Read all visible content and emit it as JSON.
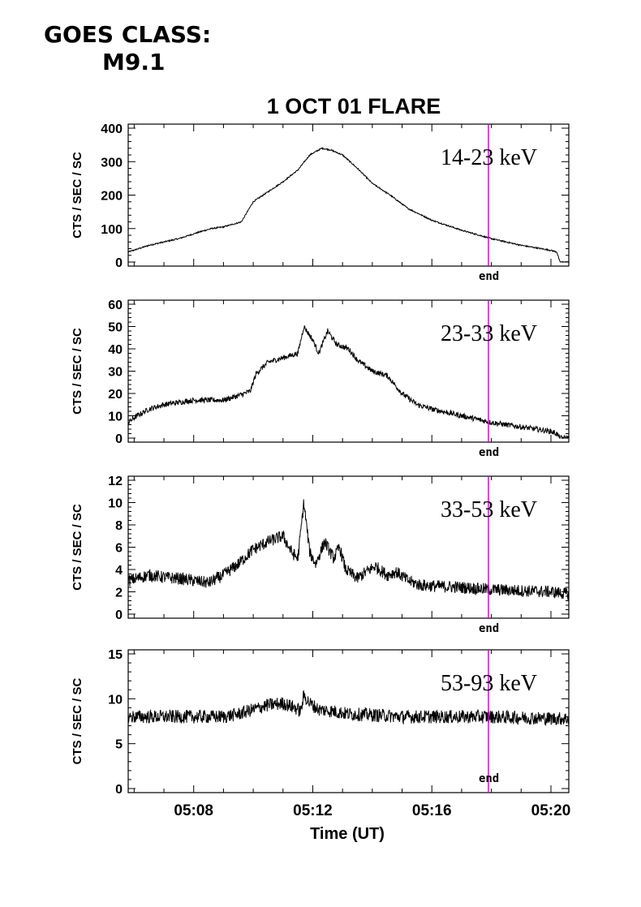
{
  "header": {
    "goes_line1": "GOES CLASS:",
    "goes_line2": "M9.1"
  },
  "chart_data": {
    "type": "line",
    "title": "1 OCT 01 FLARE",
    "xlabel": "Time (UT)",
    "x_ticks": [
      "05:08",
      "05:12",
      "05:16",
      "05:20"
    ],
    "x_range_min": [
      305.8,
      320.6
    ],
    "end_marker": {
      "label": "end",
      "time_min": 317.9,
      "color": "#cc00cc"
    },
    "panels": [
      {
        "band": "14-23 keV",
        "ylabel": "CTS / SEC / SC",
        "ylim": [
          0,
          400
        ],
        "yticks": [
          0,
          100,
          200,
          300,
          400
        ],
        "x": [
          305.8,
          306.5,
          307.5,
          308.2,
          308.6,
          309.0,
          309.6,
          310.0,
          310.5,
          311.0,
          311.5,
          311.9,
          312.3,
          312.6,
          313.0,
          313.5,
          314.0,
          314.6,
          315.2,
          316.0,
          317.0,
          318.0,
          319.0,
          320.0,
          320.2,
          320.3,
          320.6
        ],
        "y": [
          30,
          50,
          70,
          90,
          100,
          105,
          120,
          180,
          210,
          240,
          275,
          320,
          340,
          335,
          320,
          280,
          235,
          200,
          160,
          125,
          95,
          70,
          50,
          35,
          30,
          0,
          0
        ],
        "noise": 2
      },
      {
        "band": "23-33 keV",
        "ylabel": "CTS / SEC / SC",
        "ylim": [
          0,
          60
        ],
        "yticks": [
          0,
          10,
          20,
          30,
          40,
          50,
          60
        ],
        "x": [
          305.8,
          306.1,
          306.5,
          307.0,
          307.5,
          308.0,
          308.5,
          309.0,
          309.5,
          309.9,
          310.1,
          310.5,
          311.0,
          311.5,
          311.7,
          312.0,
          312.2,
          312.5,
          312.8,
          313.2,
          313.5,
          314.0,
          314.5,
          315.0,
          315.5,
          316.0,
          317.0,
          318.0,
          319.0,
          320.0,
          320.2,
          320.3,
          320.6
        ],
        "y": [
          7,
          10,
          13,
          15,
          16,
          17,
          17,
          17,
          19,
          21,
          29,
          34,
          36,
          38,
          50,
          44,
          38,
          48,
          42,
          40,
          35,
          30,
          28,
          20,
          15,
          13,
          10,
          7,
          5,
          3,
          2,
          0,
          0
        ],
        "noise": 1.2
      },
      {
        "band": "33-53 keV",
        "ylabel": "CTS / SEC / SC",
        "ylim": [
          0,
          12
        ],
        "yticks": [
          0,
          2,
          4,
          6,
          8,
          10,
          12
        ],
        "x": [
          305.8,
          306.5,
          307.0,
          307.5,
          308.0,
          308.5,
          309.0,
          309.5,
          310.0,
          310.5,
          311.0,
          311.3,
          311.5,
          311.7,
          311.9,
          312.1,
          312.4,
          312.7,
          312.9,
          313.1,
          313.5,
          313.8,
          314.1,
          314.5,
          314.8,
          315.2,
          315.6,
          316.2,
          317.0,
          318.0,
          319.0,
          320.0,
          320.6
        ],
        "y": [
          3,
          3.5,
          3.3,
          3.2,
          3.0,
          2.8,
          3.5,
          4.5,
          5.8,
          6.5,
          7.0,
          5.5,
          5.0,
          10.0,
          5.5,
          4.5,
          6.5,
          5.0,
          6.0,
          4.0,
          3.2,
          3.8,
          4.3,
          3.5,
          3.8,
          3.0,
          2.6,
          2.5,
          2.4,
          2.2,
          2.1,
          2.0,
          1.8
        ],
        "noise": 0.55
      },
      {
        "band": "53-93 keV",
        "ylabel": "CTS / SEC / SC",
        "ylim": [
          0,
          15
        ],
        "yticks": [
          0,
          5,
          10,
          15
        ],
        "x": [
          305.8,
          307.0,
          308.0,
          309.0,
          309.5,
          310.0,
          310.5,
          311.0,
          311.4,
          311.6,
          311.7,
          311.9,
          312.2,
          312.7,
          313.2,
          314.0,
          315.0,
          316.0,
          317.0,
          318.0,
          319.0,
          320.0,
          320.6
        ],
        "y": [
          8,
          8,
          8,
          8,
          8.3,
          8.8,
          9.3,
          9.5,
          9.0,
          8.6,
          10.4,
          9.5,
          8.8,
          8.6,
          8.3,
          8.2,
          8.0,
          8.0,
          8.0,
          8.0,
          7.9,
          7.8,
          7.8
        ],
        "noise": 0.75
      }
    ]
  },
  "styles": {
    "trace_color": "#000000",
    "axis_color": "#000000"
  }
}
